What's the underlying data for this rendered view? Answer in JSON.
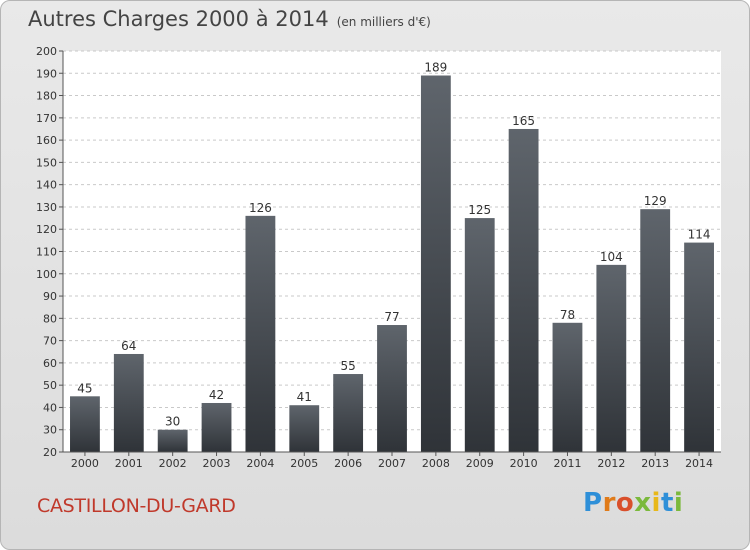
{
  "header": {
    "title": "Autres Charges 2000 à 2014",
    "unit": "(en milliers d'€)"
  },
  "footer": {
    "location": "CASTILLON-DU-GARD",
    "logo_letters": [
      "P",
      "r",
      "o",
      "x",
      "i",
      "t",
      "i"
    ],
    "logo_colors": [
      "#2e8fd8",
      "#e07b1a",
      "#d94f2b",
      "#7bb93c",
      "#e8b81a",
      "#2e8fd8",
      "#7bb93c"
    ]
  },
  "chart_data": {
    "type": "bar",
    "categories": [
      "2000",
      "2001",
      "2002",
      "2003",
      "2004",
      "2005",
      "2006",
      "2007",
      "2008",
      "2009",
      "2010",
      "2011",
      "2012",
      "2013",
      "2014"
    ],
    "values": [
      45,
      64,
      30,
      42,
      126,
      41,
      55,
      77,
      189,
      125,
      165,
      78,
      104,
      129,
      114
    ],
    "title": "Autres Charges 2000 à 2014",
    "subtitle": "(en milliers d'€)",
    "xlabel": "",
    "ylabel": "",
    "ylim": [
      20,
      200
    ],
    "yticks": [
      20,
      30,
      40,
      50,
      60,
      70,
      80,
      90,
      100,
      110,
      120,
      130,
      140,
      150,
      160,
      170,
      180,
      190,
      200
    ],
    "grid": true,
    "bar_color": "#4a4f55",
    "plot_background": "#ffffff"
  }
}
